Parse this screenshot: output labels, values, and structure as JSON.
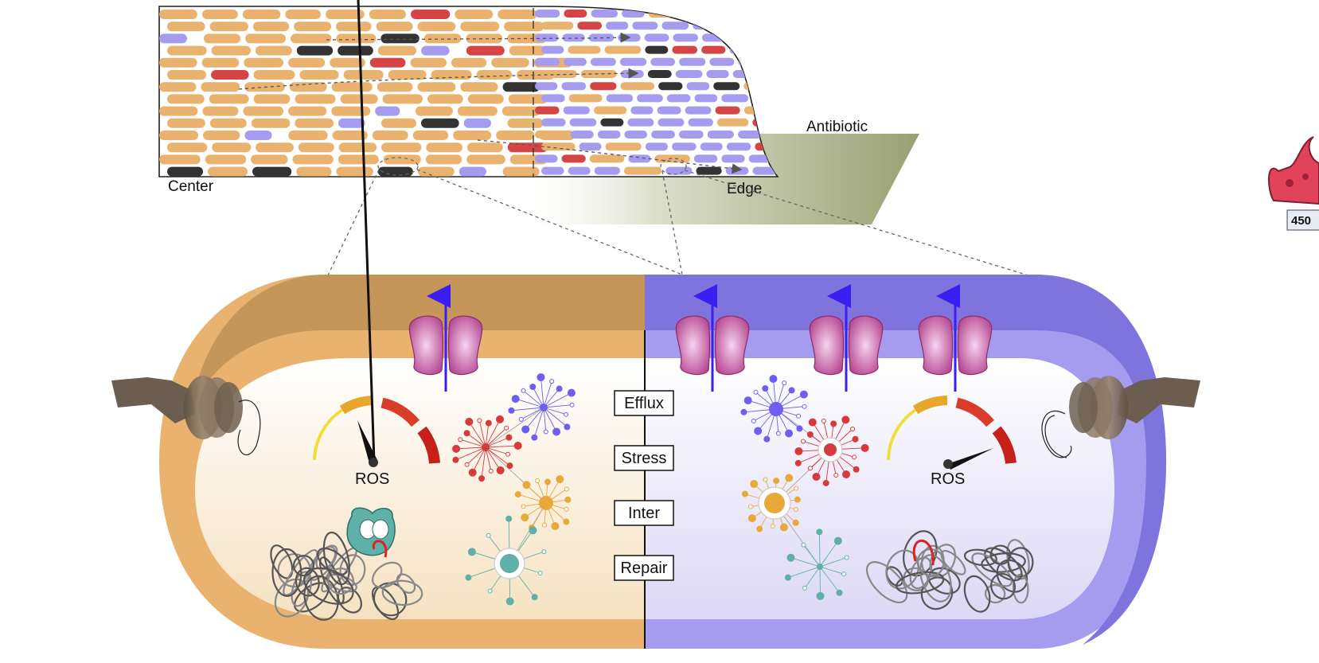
{
  "colony": {
    "center_label": "Center",
    "edge_label": "Edge",
    "antibiotic_label": "Antibiotic"
  },
  "cell": {
    "left_gauge_label": "ROS",
    "right_gauge_label": "ROS",
    "modules": [
      "Efflux",
      "Stress",
      "Inter",
      "Repair"
    ]
  },
  "corner_badge": {
    "value": "450"
  },
  "colors": {
    "orange_cell": "#e9b36f",
    "orange_dark": "#c4965a",
    "purple_cell": "#a59cf0",
    "purple_dark": "#7f74de",
    "persister": "#333333",
    "red_cell": "#d64545",
    "arrow_blue": "#3a1ff0",
    "pump_magenta": "#c4559e",
    "antibiotic": "#98a072"
  }
}
